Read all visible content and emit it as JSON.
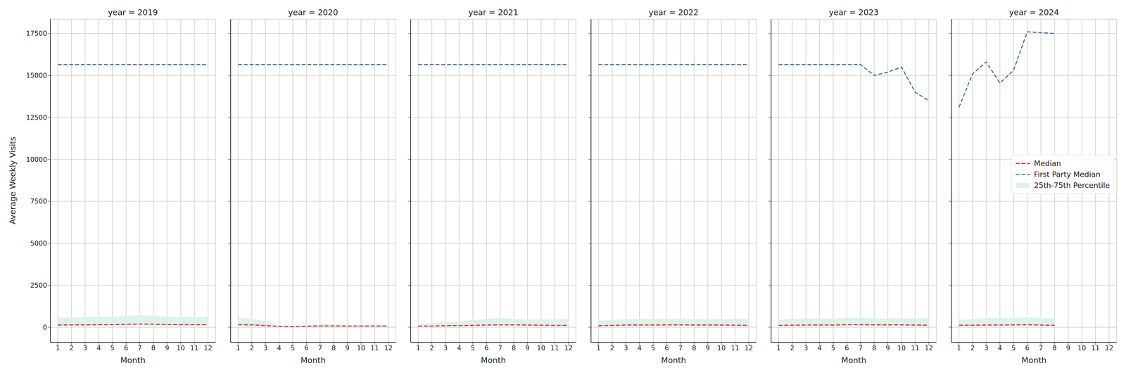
{
  "chart_data": [
    {
      "type": "line",
      "title": "year = 2019",
      "xlabel": "Month",
      "ylabel": "Average Weekly Visits",
      "x": [
        1,
        2,
        3,
        4,
        5,
        6,
        7,
        8,
        9,
        10,
        11,
        12
      ],
      "xlim": [
        0.45,
        12.55
      ],
      "xticks": [
        1,
        2,
        3,
        4,
        5,
        6,
        7,
        8,
        9,
        10,
        11,
        12
      ],
      "ylim": [
        -900,
        18350
      ],
      "yticks": [
        0,
        2500,
        5000,
        7500,
        10000,
        12500,
        15000,
        17500
      ],
      "grid": true,
      "series": [
        {
          "name": "Median",
          "color": "#d62728",
          "line_style": "dashed",
          "values": [
            130,
            140,
            140,
            150,
            150,
            170,
            190,
            180,
            160,
            150,
            150,
            150
          ]
        },
        {
          "name": "First Party Median",
          "color": "#3a6ab0",
          "line_style": "dashed",
          "values": [
            15650,
            15650,
            15650,
            15650,
            15650,
            15650,
            15650,
            15650,
            15650,
            15650,
            15650,
            15650
          ]
        },
        {
          "name": "25th-75th Percentile",
          "type": "band",
          "color": "#dff2ea",
          "low": [
            70,
            80,
            80,
            90,
            90,
            100,
            110,
            100,
            90,
            90,
            90,
            90
          ],
          "high": [
            560,
            580,
            600,
            610,
            620,
            680,
            720,
            680,
            620,
            600,
            610,
            620
          ]
        }
      ]
    },
    {
      "type": "line",
      "title": "year = 2020",
      "xlabel": "Month",
      "x": [
        1,
        2,
        3,
        4,
        5,
        6,
        7,
        8,
        9,
        10,
        11,
        12
      ],
      "xlim": [
        0.45,
        12.55
      ],
      "xticks": [
        1,
        2,
        3,
        4,
        5,
        6,
        7,
        8,
        9,
        10,
        11,
        12
      ],
      "ylim": [
        -900,
        18350
      ],
      "yticks": [
        0,
        2500,
        5000,
        7500,
        10000,
        12500,
        15000,
        17500
      ],
      "grid": true,
      "tick_labels": "x",
      "series": [
        {
          "name": "Median",
          "color": "#d62728",
          "line_style": "dashed",
          "values": [
            150,
            140,
            100,
            40,
            30,
            60,
            80,
            80,
            70,
            70,
            70,
            70
          ]
        },
        {
          "name": "First Party Median",
          "color": "#3a6ab0",
          "line_style": "dashed",
          "values": [
            15650,
            15650,
            15650,
            15650,
            15650,
            15650,
            15650,
            15650,
            15650,
            15650,
            15650,
            15650
          ]
        },
        {
          "name": "25th-75th Percentile",
          "type": "band",
          "color": "#dff2ea",
          "low": [
            50,
            40,
            20,
            0,
            0,
            10,
            20,
            20,
            20,
            20,
            20,
            20
          ],
          "high": [
            560,
            520,
            350,
            100,
            80,
            120,
            160,
            180,
            160,
            150,
            160,
            170
          ]
        }
      ]
    },
    {
      "type": "line",
      "title": "year = 2021",
      "xlabel": "Month",
      "x": [
        1,
        2,
        3,
        4,
        5,
        6,
        7,
        8,
        9,
        10,
        11,
        12
      ],
      "xlim": [
        0.45,
        12.55
      ],
      "xticks": [
        1,
        2,
        3,
        4,
        5,
        6,
        7,
        8,
        9,
        10,
        11,
        12
      ],
      "ylim": [
        -900,
        18350
      ],
      "yticks": [
        0,
        2500,
        5000,
        7500,
        10000,
        12500,
        15000,
        17500
      ],
      "grid": true,
      "tick_labels": "x",
      "series": [
        {
          "name": "Median",
          "color": "#d62728",
          "line_style": "dashed",
          "values": [
            60,
            70,
            90,
            100,
            110,
            130,
            140,
            140,
            130,
            120,
            110,
            110
          ]
        },
        {
          "name": "First Party Median",
          "color": "#3a6ab0",
          "line_style": "dashed",
          "values": [
            15650,
            15650,
            15650,
            15650,
            15650,
            15650,
            15650,
            15650,
            15650,
            15650,
            15650,
            15650
          ]
        },
        {
          "name": "25th-75th Percentile",
          "type": "band",
          "color": "#dff2ea",
          "low": [
            20,
            30,
            40,
            50,
            60,
            70,
            70,
            70,
            60,
            60,
            50,
            50
          ],
          "high": [
            200,
            250,
            300,
            350,
            420,
            500,
            560,
            500,
            460,
            470,
            460,
            470
          ]
        }
      ]
    },
    {
      "type": "line",
      "title": "year = 2022",
      "xlabel": "Month",
      "x": [
        1,
        2,
        3,
        4,
        5,
        6,
        7,
        8,
        9,
        10,
        11,
        12
      ],
      "xlim": [
        0.45,
        12.55
      ],
      "xticks": [
        1,
        2,
        3,
        4,
        5,
        6,
        7,
        8,
        9,
        10,
        11,
        12
      ],
      "ylim": [
        -900,
        18350
      ],
      "yticks": [
        0,
        2500,
        5000,
        7500,
        10000,
        12500,
        15000,
        17500
      ],
      "grid": true,
      "tick_labels": "x",
      "series": [
        {
          "name": "Median",
          "color": "#d62728",
          "line_style": "dashed",
          "values": [
            90,
            110,
            130,
            130,
            130,
            140,
            140,
            130,
            130,
            130,
            120,
            110
          ]
        },
        {
          "name": "First Party Median",
          "color": "#3a6ab0",
          "line_style": "dashed",
          "values": [
            15650,
            15650,
            15650,
            15650,
            15650,
            15650,
            15650,
            15650,
            15650,
            15650,
            15650,
            15650
          ]
        },
        {
          "name": "25th-75th Percentile",
          "type": "band",
          "color": "#dff2ea",
          "low": [
            40,
            50,
            60,
            60,
            60,
            60,
            60,
            60,
            60,
            60,
            60,
            50
          ],
          "high": [
            380,
            420,
            480,
            500,
            490,
            510,
            520,
            500,
            460,
            480,
            500,
            470
          ]
        }
      ]
    },
    {
      "type": "line",
      "title": "year = 2023",
      "xlabel": "Month",
      "x": [
        1,
        2,
        3,
        4,
        5,
        6,
        7,
        8,
        9,
        10,
        11,
        12
      ],
      "xlim": [
        0.45,
        12.55
      ],
      "xticks": [
        1,
        2,
        3,
        4,
        5,
        6,
        7,
        8,
        9,
        10,
        11,
        12
      ],
      "ylim": [
        -900,
        18350
      ],
      "yticks": [
        0,
        2500,
        5000,
        7500,
        10000,
        12500,
        15000,
        17500
      ],
      "grid": true,
      "tick_labels": "x",
      "series": [
        {
          "name": "Median",
          "color": "#d62728",
          "line_style": "dashed",
          "values": [
            110,
            120,
            130,
            130,
            130,
            150,
            150,
            140,
            140,
            140,
            130,
            120
          ]
        },
        {
          "name": "First Party Median",
          "color": "#3a6ab0",
          "line_style": "dashed",
          "values": [
            15650,
            15650,
            15650,
            15650,
            15650,
            15650,
            15650,
            15000,
            15200,
            15500,
            14000,
            13500
          ]
        },
        {
          "name": "25th-75th Percentile",
          "type": "band",
          "color": "#dff2ea",
          "low": [
            50,
            55,
            60,
            60,
            60,
            60,
            60,
            60,
            60,
            60,
            60,
            55
          ],
          "high": [
            450,
            480,
            520,
            520,
            500,
            550,
            560,
            540,
            520,
            520,
            540,
            520
          ]
        }
      ]
    },
    {
      "type": "line",
      "title": "year = 2024",
      "xlabel": "Month",
      "x": [
        1,
        2,
        3,
        4,
        5,
        6,
        7,
        8,
        9,
        10,
        11,
        12
      ],
      "xlim": [
        0.45,
        12.55
      ],
      "xticks": [
        1,
        2,
        3,
        4,
        5,
        6,
        7,
        8,
        9,
        10,
        11,
        12
      ],
      "ylim": [
        -900,
        18350
      ],
      "yticks": [
        0,
        2500,
        5000,
        7500,
        10000,
        12500,
        15000,
        17500
      ],
      "grid": true,
      "tick_labels": "x",
      "legend": "center right",
      "series": [
        {
          "name": "Median",
          "color": "#d62728",
          "line_style": "dashed",
          "values": [
            120,
            120,
            130,
            130,
            140,
            150,
            130,
            110,
            null,
            null,
            null,
            null
          ]
        },
        {
          "name": "First Party Median",
          "color": "#3a6ab0",
          "line_style": "dashed",
          "values": [
            13100,
            15100,
            15800,
            14550,
            15300,
            17600,
            17550,
            17500,
            null,
            null,
            null,
            null
          ]
        },
        {
          "name": "25th-75th Percentile",
          "type": "band",
          "color": "#dff2ea",
          "low": [
            60,
            60,
            60,
            60,
            60,
            60,
            60,
            60,
            null,
            null,
            null,
            null
          ],
          "high": [
            450,
            480,
            560,
            560,
            540,
            600,
            560,
            520,
            null,
            null,
            null,
            null
          ]
        }
      ]
    }
  ]
}
